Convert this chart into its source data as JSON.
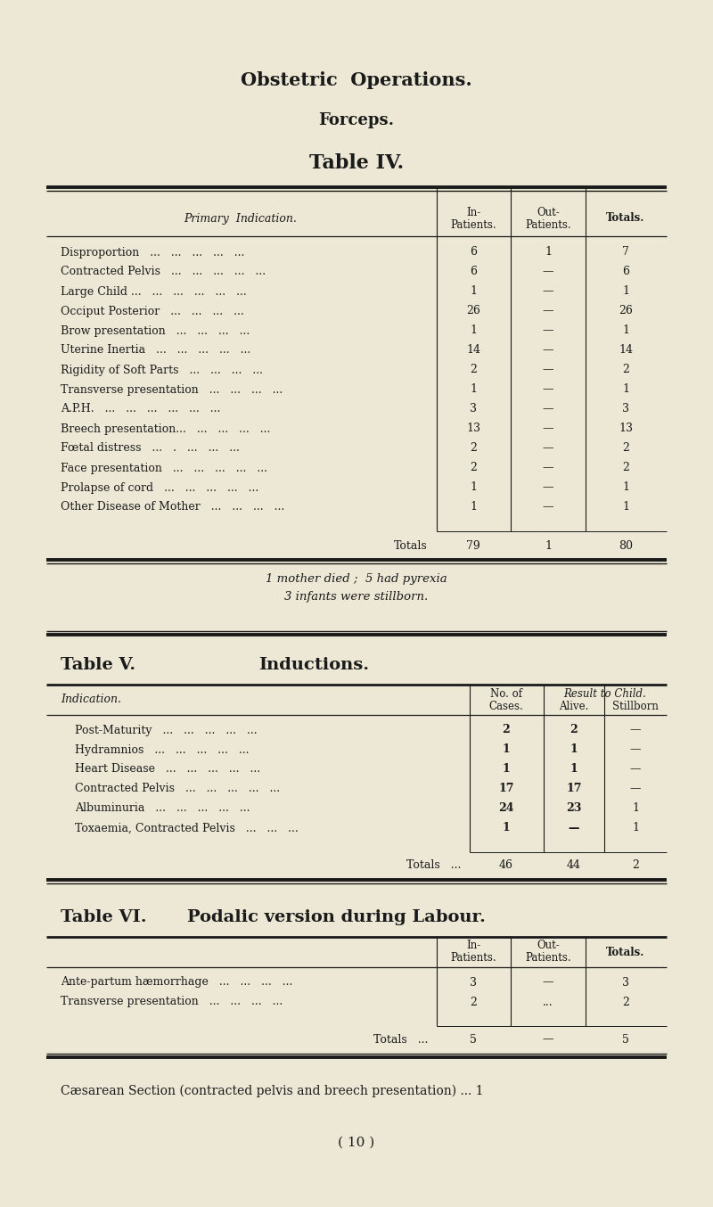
{
  "bg_color": "#ece8d5",
  "text_color": "#1a1a1a",
  "title1": "Obstetric  Operations.",
  "title2": "Forceps.",
  "title3": "Table IV.",
  "table4_rows": [
    [
      "Disproportion   ...   ...   ...   ...   ...",
      "6",
      "1",
      "7"
    ],
    [
      "Contracted Pelvis   ...   ...   ...   ...   ...",
      "6",
      "—",
      "6"
    ],
    [
      "Large Child ...   ...   ...   ...   ...   ...",
      "1",
      "—",
      "1"
    ],
    [
      "Occiput Posterior   ...   ...   ...   ...",
      "26",
      "—",
      "26"
    ],
    [
      "Brow presentation   ...   ...   ...   ...",
      "1",
      "—",
      "1"
    ],
    [
      "Uterine Inertia   ...   ...   ...   ...   ...",
      "14",
      "—",
      "14"
    ],
    [
      "Rigidity of Soft Parts   ...   ...   ...   ...",
      "2",
      "—",
      "2"
    ],
    [
      "Transverse presentation   ...   ...   ...   ...",
      "1",
      "—",
      "1"
    ],
    [
      "A.P.H.   ...   ...   ...   ...   ...   ...",
      "3",
      "—",
      "3"
    ],
    [
      "Breech presentation...   ...   ...   ...   ...",
      "13",
      "—",
      "13"
    ],
    [
      "Fœtal distress   ...   .   ...   ...   ...",
      "2",
      "—",
      "2"
    ],
    [
      "Face presentation   ...   ...   ...   ...   ...",
      "2",
      "—",
      "2"
    ],
    [
      "Prolapse of cord   ...   ...   ...   ...   ...",
      "1",
      "—",
      "1"
    ],
    [
      "Other Disease of Mother   ...   ...   ...   ...",
      "1",
      "—",
      "1"
    ]
  ],
  "table4_totals": [
    "Totals",
    "79",
    "1",
    "80"
  ],
  "table4_footnote1": "1 mother died ;  5 had pyrexia",
  "table4_footnote2": "3 infants were stillborn.",
  "title5a": "Table V.",
  "title5b": "Inductions.",
  "table5_rows": [
    [
      "Post-Maturity   ...   ...   ...   ...   ...",
      "2",
      "2",
      "—"
    ],
    [
      "Hydramnios   ...   ...   ...   ...   ...",
      "1",
      "1",
      "—"
    ],
    [
      "Heart Disease   ...   ...   ...   ...   ...",
      "1",
      "1",
      "—"
    ],
    [
      "Contracted Pelvis   ...   ...   ...   ...   ...",
      "17",
      "17",
      "—"
    ],
    [
      "Albuminuria   ...   ...   ...   ...   ...",
      "24",
      "23",
      "1"
    ],
    [
      "Toxaemia, Contracted Pelvis   ...   ...   ...",
      "1",
      "—",
      "1"
    ]
  ],
  "table5_totals": [
    "Totals   ...",
    "46",
    "44",
    "2"
  ],
  "title6a": "Table VI.",
  "title6b": "Podalic version during Labour.",
  "table6_rows": [
    [
      "Ante-partum hæmorrhage   ...   ...   ...   ...",
      "3",
      "—",
      "3"
    ],
    [
      "Transverse presentation   ...   ...   ...   ...",
      "2",
      "...",
      "2"
    ]
  ],
  "table6_totals": [
    "Totals   ...",
    "5",
    "—",
    "5"
  ],
  "caesarean": "Cæsarean Section (contracted pelvis and breech presentation) ... 1",
  "page_num": "( 10 )"
}
